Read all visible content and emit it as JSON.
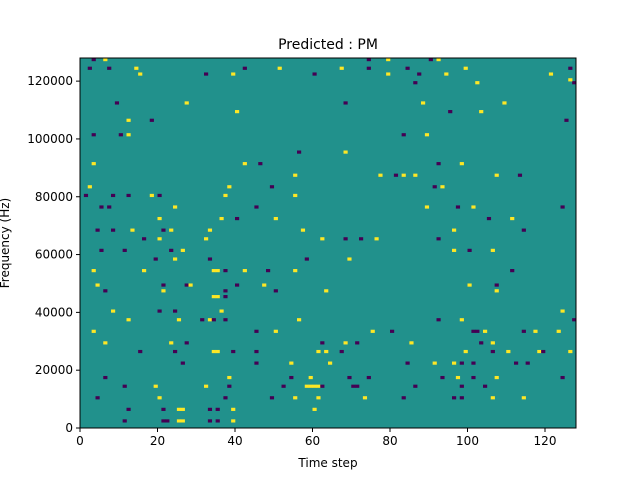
{
  "chart_data": {
    "type": "heatmap",
    "title": "Predicted : PM",
    "xlabel": "Time step",
    "ylabel": "Frequency (Hz)",
    "xlim": [
      0,
      128
    ],
    "ylim": [
      0,
      128000
    ],
    "x_ticks": [
      0,
      20,
      40,
      60,
      80,
      100,
      120
    ],
    "y_ticks": [
      0,
      20000,
      40000,
      60000,
      80000,
      100000,
      120000
    ],
    "grid_shape": [
      128,
      128
    ],
    "background_value": 0,
    "colormap": "viridis",
    "colors": {
      "background": "#21918c",
      "low": "#440154",
      "high": "#fde725"
    },
    "cells": [
      [
        3,
        127,
        -1
      ],
      [
        6,
        127,
        1
      ],
      [
        74,
        127,
        -1
      ],
      [
        79,
        127,
        1
      ],
      [
        90,
        127,
        -1
      ],
      [
        92,
        127,
        1
      ],
      [
        2,
        124,
        -1
      ],
      [
        7,
        124,
        -1
      ],
      [
        14,
        124,
        1
      ],
      [
        42,
        124,
        -1
      ],
      [
        51,
        124,
        1
      ],
      [
        67,
        124,
        1
      ],
      [
        74,
        124,
        -1
      ],
      [
        84,
        124,
        -1
      ],
      [
        99,
        124,
        1
      ],
      [
        126,
        124,
        -1
      ],
      [
        15,
        122,
        1
      ],
      [
        32,
        122,
        -1
      ],
      [
        39,
        122,
        1
      ],
      [
        60,
        122,
        -1
      ],
      [
        79,
        122,
        1
      ],
      [
        87,
        122,
        -1
      ],
      [
        94,
        122,
        1
      ],
      [
        121,
        122,
        1
      ],
      [
        86,
        119,
        -1
      ],
      [
        102,
        119,
        1
      ],
      [
        127,
        119,
        -1
      ],
      [
        126,
        120,
        1
      ],
      [
        9,
        112,
        -1
      ],
      [
        27,
        112,
        1
      ],
      [
        68,
        112,
        -1
      ],
      [
        88,
        112,
        1
      ],
      [
        109,
        112,
        1
      ],
      [
        40,
        109,
        1
      ],
      [
        95,
        109,
        -1
      ],
      [
        103,
        109,
        1
      ],
      [
        18,
        106,
        -1
      ],
      [
        12,
        106,
        1
      ],
      [
        125,
        106,
        -1
      ],
      [
        3,
        101,
        -1
      ],
      [
        10,
        101,
        -1
      ],
      [
        12,
        101,
        1
      ],
      [
        83,
        101,
        -1
      ],
      [
        89,
        101,
        1
      ],
      [
        56,
        95,
        -1
      ],
      [
        68,
        95,
        1
      ],
      [
        3,
        91,
        1
      ],
      [
        42,
        91,
        1
      ],
      [
        46,
        91,
        -1
      ],
      [
        92,
        91,
        -1
      ],
      [
        98,
        91,
        1
      ],
      [
        55,
        87,
        1
      ],
      [
        77,
        87,
        1
      ],
      [
        81,
        87,
        -1
      ],
      [
        83,
        87,
        1
      ],
      [
        86,
        87,
        1
      ],
      [
        107,
        87,
        1
      ],
      [
        113,
        87,
        -1
      ],
      [
        2,
        83,
        1
      ],
      [
        38,
        83,
        1
      ],
      [
        49,
        83,
        -1
      ],
      [
        91,
        83,
        -1
      ],
      [
        93,
        83,
        1
      ],
      [
        1,
        80,
        -1
      ],
      [
        8,
        80,
        -1
      ],
      [
        12,
        80,
        -1
      ],
      [
        18,
        80,
        1
      ],
      [
        20,
        80,
        -1
      ],
      [
        37,
        80,
        1
      ],
      [
        55,
        80,
        1
      ],
      [
        5,
        76,
        -1
      ],
      [
        7,
        76,
        -1
      ],
      [
        24,
        76,
        1
      ],
      [
        45,
        76,
        -1
      ],
      [
        89,
        76,
        1
      ],
      [
        97,
        76,
        -1
      ],
      [
        101,
        76,
        1
      ],
      [
        124,
        76,
        -1
      ],
      [
        20,
        72,
        1
      ],
      [
        36,
        72,
        1
      ],
      [
        40,
        72,
        -1
      ],
      [
        50,
        72,
        1
      ],
      [
        105,
        72,
        -1
      ],
      [
        111,
        72,
        1
      ],
      [
        4,
        68,
        -1
      ],
      [
        8,
        68,
        -1
      ],
      [
        13,
        68,
        1
      ],
      [
        21,
        68,
        -1
      ],
      [
        23,
        68,
        1
      ],
      [
        33,
        68,
        1
      ],
      [
        57,
        68,
        1
      ],
      [
        96,
        68,
        1
      ],
      [
        114,
        68,
        -1
      ],
      [
        16,
        65,
        -1
      ],
      [
        20,
        65,
        1
      ],
      [
        32,
        65,
        1
      ],
      [
        62,
        65,
        1
      ],
      [
        68,
        65,
        -1
      ],
      [
        72,
        65,
        -1
      ],
      [
        76,
        65,
        1
      ],
      [
        92,
        65,
        -1
      ],
      [
        5,
        61,
        -1
      ],
      [
        11,
        61,
        -1
      ],
      [
        23,
        61,
        -1
      ],
      [
        26,
        61,
        1
      ],
      [
        96,
        61,
        1
      ],
      [
        100,
        61,
        -1
      ],
      [
        106,
        61,
        1
      ],
      [
        19,
        58,
        -1
      ],
      [
        24,
        58,
        1
      ],
      [
        33,
        58,
        -1
      ],
      [
        58,
        58,
        -1
      ],
      [
        69,
        58,
        1
      ],
      [
        3,
        54,
        1
      ],
      [
        16,
        54,
        1
      ],
      [
        34,
        54,
        1
      ],
      [
        35,
        54,
        1
      ],
      [
        37,
        54,
        -1
      ],
      [
        42,
        54,
        1
      ],
      [
        48,
        54,
        -1
      ],
      [
        55,
        54,
        1
      ],
      [
        111,
        54,
        -1
      ],
      [
        4,
        49,
        1
      ],
      [
        21,
        49,
        -1
      ],
      [
        27,
        49,
        -1
      ],
      [
        28,
        49,
        1
      ],
      [
        40,
        49,
        -1
      ],
      [
        47,
        49,
        1
      ],
      [
        100,
        49,
        1
      ],
      [
        107,
        49,
        -1
      ],
      [
        6,
        47,
        -1
      ],
      [
        21,
        47,
        1
      ],
      [
        37,
        47,
        -1
      ],
      [
        50,
        47,
        -1
      ],
      [
        63,
        47,
        1
      ],
      [
        107,
        47,
        1
      ],
      [
        34,
        45,
        1
      ],
      [
        35,
        45,
        1
      ],
      [
        37,
        45,
        -1
      ],
      [
        8,
        40,
        1
      ],
      [
        20,
        40,
        -1
      ],
      [
        24,
        40,
        -1
      ],
      [
        36,
        40,
        1
      ],
      [
        124,
        40,
        1
      ],
      [
        12,
        37,
        1
      ],
      [
        25,
        37,
        1
      ],
      [
        31,
        37,
        -1
      ],
      [
        33,
        37,
        1
      ],
      [
        34,
        37,
        -1
      ],
      [
        37,
        37,
        -1
      ],
      [
        56,
        37,
        1
      ],
      [
        92,
        37,
        -1
      ],
      [
        98,
        37,
        1
      ],
      [
        127,
        37,
        -1
      ],
      [
        3,
        33,
        1
      ],
      [
        45,
        33,
        -1
      ],
      [
        50,
        33,
        1
      ],
      [
        75,
        33,
        1
      ],
      [
        80,
        33,
        -1
      ],
      [
        101,
        33,
        -1
      ],
      [
        102,
        33,
        -1
      ],
      [
        104,
        33,
        1
      ],
      [
        114,
        33,
        -1
      ],
      [
        117,
        33,
        1
      ],
      [
        123,
        33,
        1
      ],
      [
        6,
        29,
        1
      ],
      [
        23,
        29,
        1
      ],
      [
        27,
        29,
        -1
      ],
      [
        62,
        29,
        -1
      ],
      [
        68,
        29,
        1
      ],
      [
        71,
        29,
        -1
      ],
      [
        85,
        29,
        1
      ],
      [
        103,
        29,
        -1
      ],
      [
        106,
        29,
        1
      ],
      [
        15,
        26,
        -1
      ],
      [
        24,
        26,
        -1
      ],
      [
        34,
        26,
        1
      ],
      [
        35,
        26,
        1
      ],
      [
        39,
        26,
        -1
      ],
      [
        45,
        26,
        -1
      ],
      [
        61,
        26,
        1
      ],
      [
        63,
        26,
        1
      ],
      [
        67,
        26,
        -1
      ],
      [
        99,
        26,
        1
      ],
      [
        106,
        26,
        -1
      ],
      [
        110,
        26,
        1
      ],
      [
        118,
        26,
        1
      ],
      [
        119,
        26,
        -1
      ],
      [
        126,
        26,
        1
      ],
      [
        26,
        22,
        -1
      ],
      [
        45,
        22,
        -1
      ],
      [
        54,
        22,
        1
      ],
      [
        64,
        22,
        1
      ],
      [
        84,
        22,
        -1
      ],
      [
        91,
        22,
        1
      ],
      [
        96,
        22,
        1
      ],
      [
        98,
        22,
        -1
      ],
      [
        101,
        22,
        -1
      ],
      [
        112,
        22,
        -1
      ],
      [
        115,
        22,
        -1
      ],
      [
        6,
        17,
        -1
      ],
      [
        38,
        17,
        1
      ],
      [
        54,
        17,
        -1
      ],
      [
        59,
        17,
        1
      ],
      [
        69,
        17,
        -1
      ],
      [
        74,
        17,
        -1
      ],
      [
        93,
        17,
        -1
      ],
      [
        97,
        17,
        1
      ],
      [
        101,
        17,
        -1
      ],
      [
        107,
        17,
        1
      ],
      [
        124,
        17,
        -1
      ],
      [
        11,
        14,
        -1
      ],
      [
        19,
        14,
        1
      ],
      [
        32,
        14,
        1
      ],
      [
        38,
        14,
        -1
      ],
      [
        52,
        14,
        -1
      ],
      [
        58,
        14,
        1
      ],
      [
        59,
        14,
        1
      ],
      [
        60,
        14,
        1
      ],
      [
        61,
        14,
        1
      ],
      [
        62,
        14,
        -1
      ],
      [
        70,
        14,
        -1
      ],
      [
        71,
        14,
        -1
      ],
      [
        86,
        14,
        -1
      ],
      [
        98,
        14,
        -1
      ],
      [
        104,
        14,
        -1
      ],
      [
        4,
        10,
        -1
      ],
      [
        20,
        10,
        1
      ],
      [
        37,
        10,
        -1
      ],
      [
        49,
        10,
        -1
      ],
      [
        55,
        10,
        1
      ],
      [
        61,
        10,
        1
      ],
      [
        73,
        10,
        1
      ],
      [
        83,
        10,
        -1
      ],
      [
        96,
        10,
        -1
      ],
      [
        98,
        10,
        -1
      ],
      [
        106,
        10,
        1
      ],
      [
        114,
        10,
        1
      ],
      [
        12,
        6,
        -1
      ],
      [
        21,
        6,
        -1
      ],
      [
        25,
        6,
        1
      ],
      [
        26,
        6,
        1
      ],
      [
        33,
        6,
        -1
      ],
      [
        35,
        6,
        -1
      ],
      [
        39,
        6,
        1
      ],
      [
        60,
        6,
        1
      ],
      [
        11,
        2,
        -1
      ],
      [
        21,
        2,
        -1
      ],
      [
        22,
        2,
        -1
      ],
      [
        25,
        2,
        1
      ],
      [
        26,
        2,
        1
      ],
      [
        33,
        2,
        -1
      ],
      [
        35,
        2,
        -1
      ],
      [
        39,
        2,
        1
      ]
    ]
  }
}
